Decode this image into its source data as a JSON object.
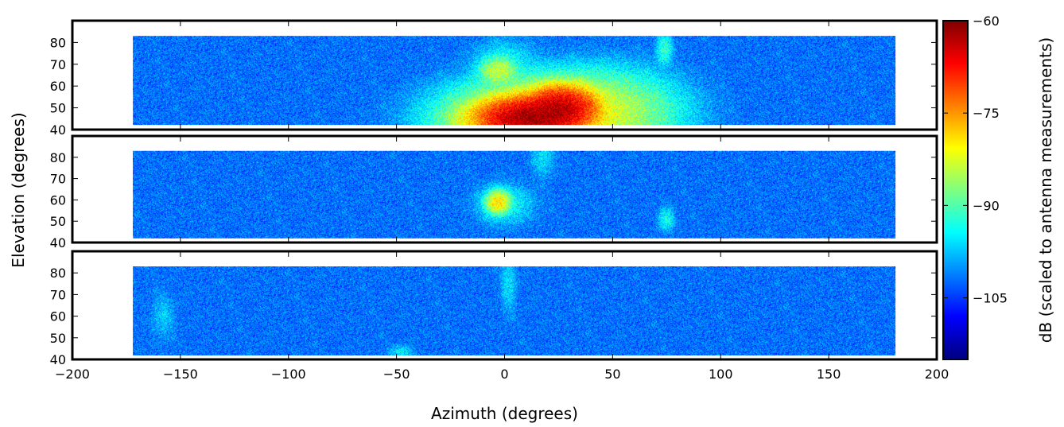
{
  "chart_data": {
    "type": "heatmap",
    "title": "",
    "xlabel": "Azimuth (degrees)",
    "ylabel": "Elevation (degrees)",
    "colorbar_label": "dB (scaled to antenna measurements)",
    "xlim": [
      -200,
      200
    ],
    "x_ticks": [
      -200,
      -150,
      -100,
      -50,
      0,
      50,
      100,
      150,
      200
    ],
    "x_tick_labels": [
      "−200",
      "−150",
      "−100",
      "−50",
      "0",
      "50",
      "100",
      "150",
      "200"
    ],
    "colorbar_range": [
      -115,
      -60
    ],
    "colorbar_ticks": [
      -60,
      -75,
      -90,
      -105
    ],
    "colorbar_tick_labels": [
      "−60",
      "−75",
      "−90",
      "−105"
    ],
    "colormap": "jet",
    "data_extent": {
      "azimuth": [
        -172,
        181
      ],
      "elevation": [
        42,
        83
      ]
    },
    "background_level_db": -102,
    "panels": [
      {
        "name": "panel-1",
        "ylim": [
          40,
          90
        ],
        "y_ticks": [
          40,
          50,
          60,
          70,
          80
        ],
        "y_tick_labels": [
          "40",
          "50",
          "60",
          "70",
          "80"
        ],
        "hotspots": [
          {
            "azimuth": 12,
            "elevation": 45,
            "sigma_az": 10,
            "sigma_el": 4,
            "peak_db": -62
          },
          {
            "azimuth": 26,
            "elevation": 50,
            "sigma_az": 7,
            "sigma_el": 4,
            "peak_db": -64
          },
          {
            "azimuth": 22,
            "elevation": 46,
            "sigma_az": 22,
            "sigma_el": 8,
            "peak_db": -80
          },
          {
            "azimuth": 45,
            "elevation": 52,
            "sigma_az": 18,
            "sigma_el": 9,
            "peak_db": -90
          },
          {
            "azimuth": -6,
            "elevation": 44,
            "sigma_az": 12,
            "sigma_el": 3,
            "peak_db": -85
          },
          {
            "azimuth": -3,
            "elevation": 67,
            "sigma_az": 4,
            "sigma_el": 3,
            "peak_db": -84
          },
          {
            "azimuth": 0,
            "elevation": 70,
            "sigma_az": 8,
            "sigma_el": 6,
            "peak_db": -95
          },
          {
            "azimuth": 74,
            "elevation": 77,
            "sigma_az": 2,
            "sigma_el": 4,
            "peak_db": -92
          }
        ]
      },
      {
        "name": "panel-2",
        "ylim": [
          40,
          90
        ],
        "y_ticks": [
          40,
          50,
          60,
          70,
          80
        ],
        "y_tick_labels": [
          "40",
          "50",
          "60",
          "70",
          "80"
        ],
        "hotspots": [
          {
            "azimuth": -3,
            "elevation": 59,
            "sigma_az": 2.5,
            "sigma_el": 2.5,
            "peak_db": -79
          },
          {
            "azimuth": 0,
            "elevation": 58,
            "sigma_az": 7,
            "sigma_el": 5,
            "peak_db": -94
          },
          {
            "azimuth": 18,
            "elevation": 80,
            "sigma_az": 3,
            "sigma_el": 5,
            "peak_db": -97
          },
          {
            "azimuth": 75,
            "elevation": 51,
            "sigma_az": 2,
            "sigma_el": 3,
            "peak_db": -94
          }
        ]
      },
      {
        "name": "panel-3",
        "ylim": [
          40,
          90
        ],
        "y_ticks": [
          40,
          50,
          60,
          70,
          80
        ],
        "y_tick_labels": [
          "40",
          "50",
          "60",
          "70",
          "80"
        ],
        "hotspots": [
          {
            "azimuth": 2,
            "elevation": 76,
            "sigma_az": 2,
            "sigma_el": 8,
            "peak_db": -97
          },
          {
            "azimuth": -48,
            "elevation": 43,
            "sigma_az": 3,
            "sigma_el": 2,
            "peak_db": -96
          },
          {
            "azimuth": -158,
            "elevation": 60,
            "sigma_az": 3,
            "sigma_el": 6,
            "peak_db": -99
          }
        ]
      }
    ]
  }
}
